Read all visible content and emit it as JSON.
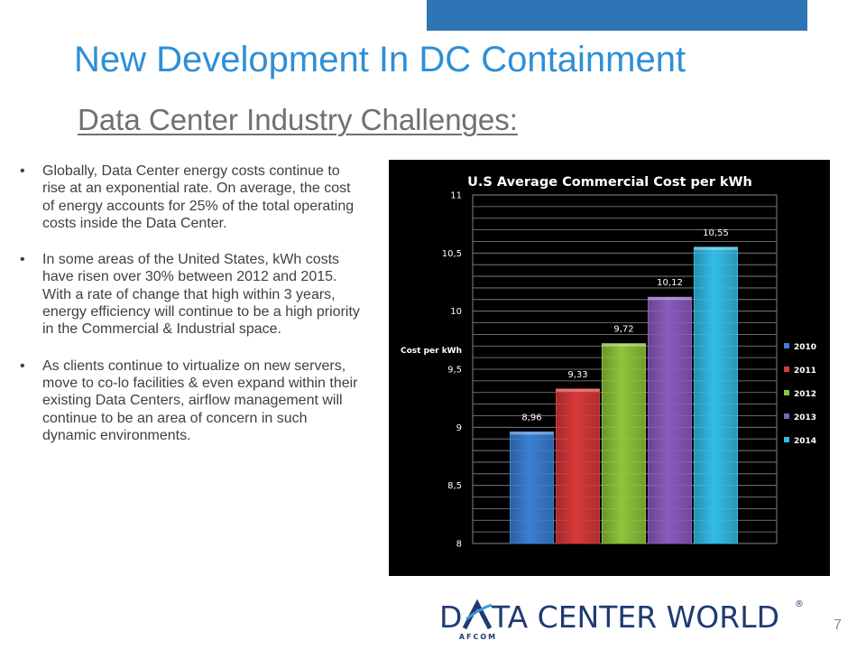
{
  "slide": {
    "title": "New Development In DC Containment",
    "subtitle": "Data Center Industry Challenges:",
    "page_number": "7",
    "accent_color": "#2e8fd6",
    "bar_color": "#2e75b6"
  },
  "bullets": [
    {
      "marker": "•",
      "text": "Globally, Data Center energy costs continue to rise at an exponential rate. On average, the cost of energy accounts for 25% of the total operating costs inside the Data Center."
    },
    {
      "marker": "•",
      "text": "In some areas of the United States, kWh costs have risen over 30% between 2012 and 2015. With a rate of change that high within 3 years, energy efficiency will continue to be a high priority in the Commercial & Industrial space."
    },
    {
      "marker": "•",
      "text": "As clients continue to virtualize on new servers,  move to co-lo facilities & even expand within their existing Data Centers, airflow management will continue to be an area of concern in such dynamic environments."
    }
  ],
  "logo": {
    "text_left": "D",
    "text_right": "TA CENTER WORLD",
    "registered": "®",
    "tagline": "AFCOM"
  },
  "chart_data": {
    "type": "bar",
    "title": "U.S Average Commercial Cost per kWh",
    "ylabel": "Cost per kWh",
    "xlabel": "",
    "ylim": [
      8,
      11
    ],
    "yticks": [
      "8",
      "8,5",
      "9",
      "9,5",
      "10",
      "10,5",
      "11"
    ],
    "ytick_values": [
      8,
      8.5,
      9,
      9.5,
      10,
      10.5,
      11
    ],
    "grid": true,
    "legend_position": "right",
    "categories": [
      "2010",
      "2011",
      "2012",
      "2013",
      "2014"
    ],
    "values": [
      8.96,
      9.33,
      9.72,
      10.12,
      10.55
    ],
    "value_labels": [
      "8,96",
      "9,33",
      "9,72",
      "10,12",
      "10,55"
    ],
    "colors": [
      "#3b7fd4",
      "#d8393a",
      "#8fc43c",
      "#8b5bbd",
      "#33bde6"
    ],
    "legend": [
      "2010",
      "2011",
      "2012",
      "2013",
      "2014"
    ]
  }
}
